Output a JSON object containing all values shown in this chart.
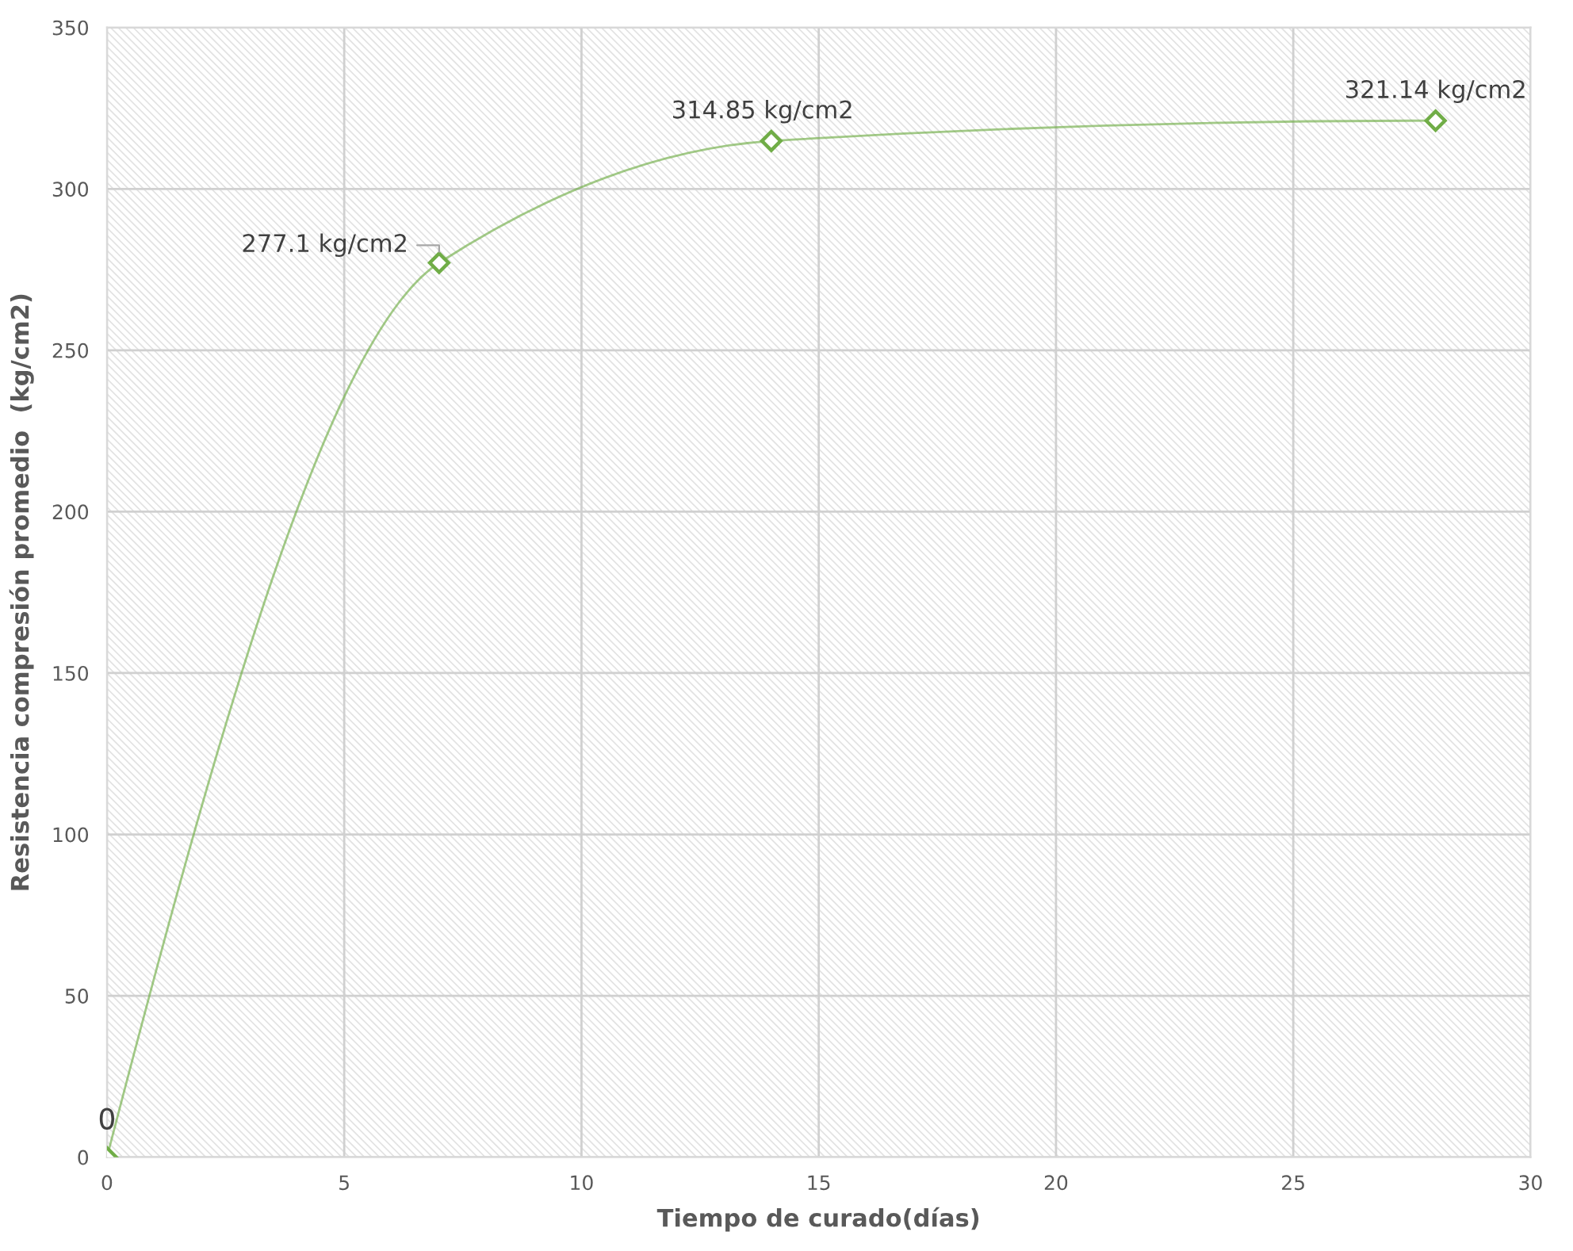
{
  "chart_data": {
    "type": "line",
    "xlabel": "Tiempo de curado(días)",
    "ylabel": "Resistencia compresión promedio  (kg/cm2)",
    "series": [
      {
        "color": "#70ad47",
        "x": [
          0,
          7,
          14,
          28
        ],
        "values": [
          0,
          277.1,
          314.85,
          321.14
        ],
        "value_labels": [
          "0",
          "277.1 kg/cm2",
          "314.85 kg/cm2",
          "321.14 kg/cm2"
        ]
      }
    ],
    "xlim": [
      0,
      30
    ],
    "xticks": [
      0,
      5,
      10,
      15,
      20,
      25,
      30
    ],
    "ylim": [
      0,
      350
    ],
    "yticks": [
      0,
      50,
      100,
      150,
      200,
      250,
      300,
      350
    ],
    "grid": true,
    "marker": "diamond",
    "line_style": "solid"
  }
}
